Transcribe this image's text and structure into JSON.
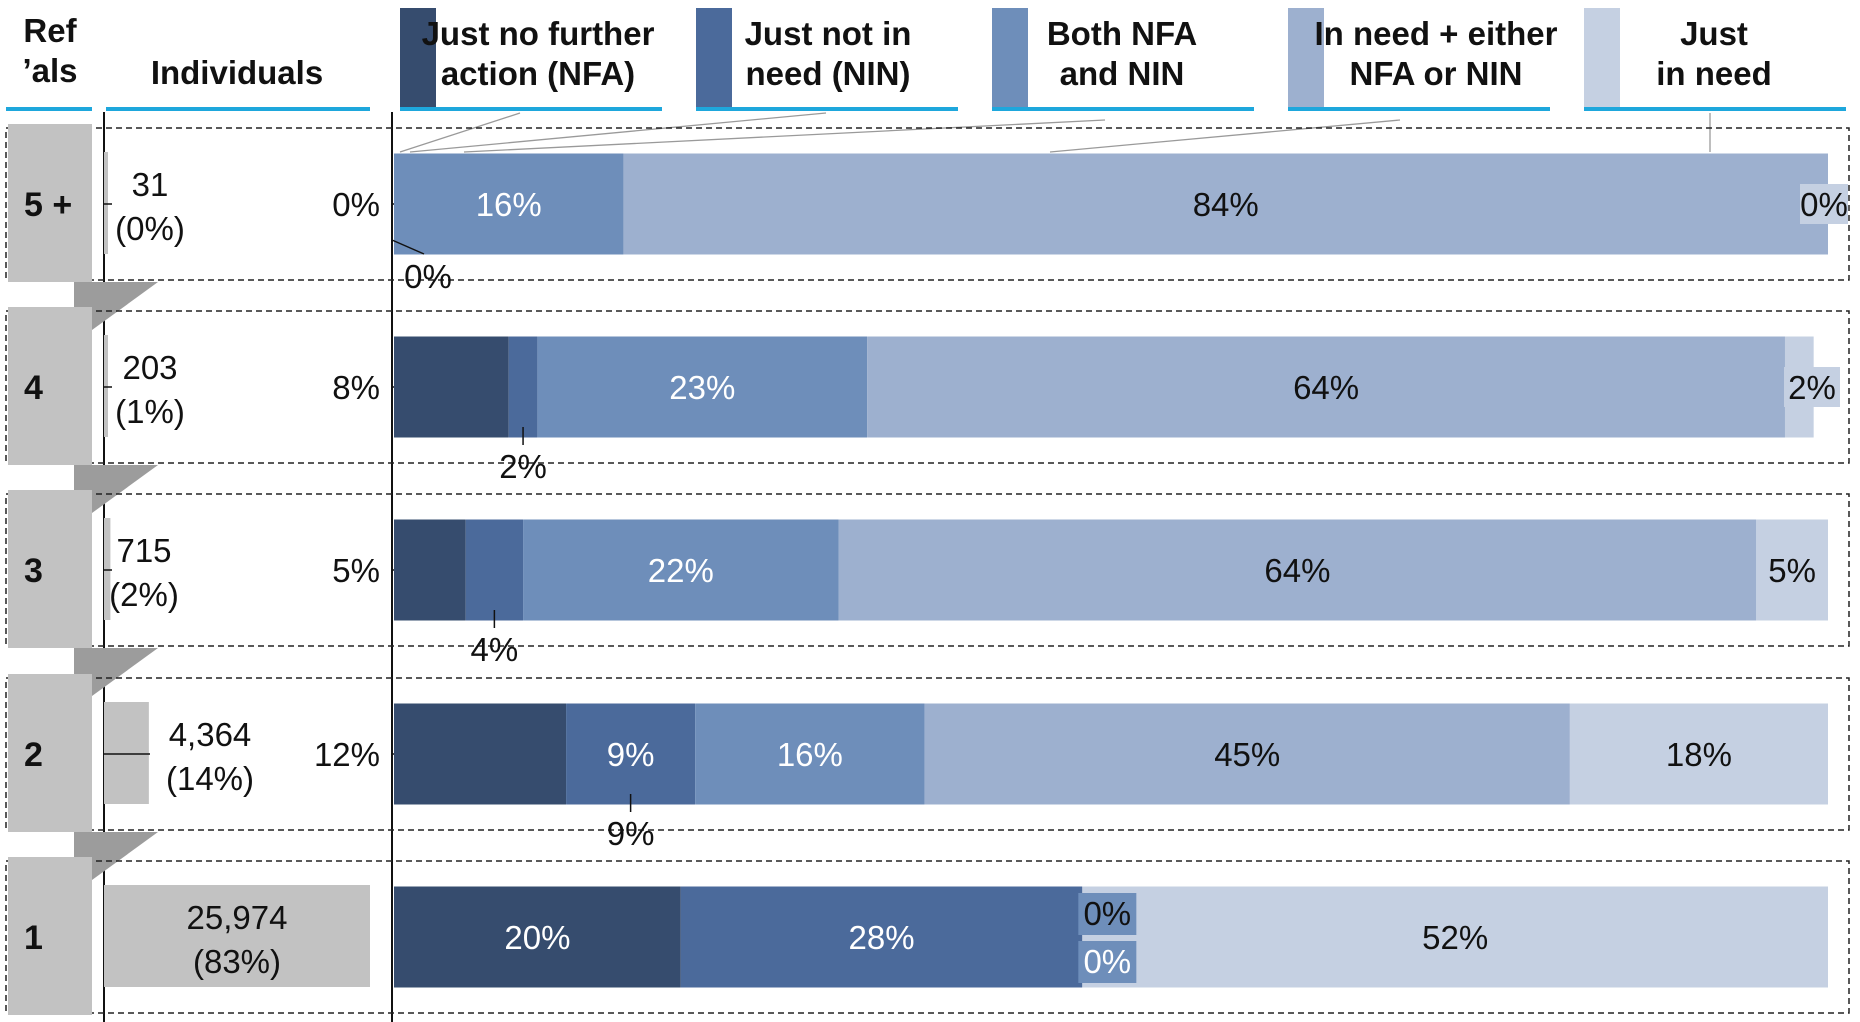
{
  "headers": {
    "referrals": [
      "Ref",
      "’als"
    ],
    "individuals": "Individuals"
  },
  "colors": {
    "just_nfa": "#364c6e",
    "just_nin": "#4b6a9b",
    "both": "#6e8eba",
    "in_need_either": "#9db0cf",
    "just_in_need": "#c5d0e2",
    "tab_gray": "#c2c2c2",
    "header_line": "#1ea7dc"
  },
  "chart_data": {
    "type": "bar",
    "orientation": "horizontal",
    "stacked": true,
    "normalized_percent": true,
    "legend_position": "top",
    "series": [
      {
        "name": [
          "Just no further",
          "action (NFA)"
        ],
        "color": "#364c6e",
        "values": [
          0,
          8,
          5,
          12,
          20
        ],
        "labels": [
          "0%",
          "8%",
          "5%",
          "12%",
          "20%"
        ]
      },
      {
        "name": [
          "Just not in",
          "need (NIN)"
        ],
        "color": "#4b6a9b",
        "values": [
          0,
          2,
          4,
          9,
          28
        ],
        "labels": [
          "0%",
          "2%",
          "4%",
          "9%",
          "28%"
        ]
      },
      {
        "name": [
          "Both NFA",
          "and NIN"
        ],
        "color": "#6e8eba",
        "values": [
          16,
          23,
          22,
          16,
          0
        ],
        "labels": [
          "16%",
          "23%",
          "22%",
          "16%",
          "0%"
        ]
      },
      {
        "name": [
          "In need + either",
          "NFA or NIN"
        ],
        "color": "#9db0cf",
        "values": [
          84,
          64,
          64,
          45,
          0
        ],
        "labels": [
          "84%",
          "64%",
          "64%",
          "45%",
          "0%"
        ]
      },
      {
        "name": [
          "Just",
          "in need"
        ],
        "color": "#c5d0e2",
        "values": [
          0,
          2,
          5,
          18,
          52
        ],
        "labels": [
          "0%",
          "2%",
          "5%",
          "18%",
          "52%"
        ]
      }
    ],
    "rows": [
      {
        "label": "5 +",
        "count": "31",
        "share": "(0%)",
        "share_value": 0
      },
      {
        "label": "4",
        "count": "203",
        "share": "(1%)",
        "share_value": 1
      },
      {
        "label": "3",
        "count": "715",
        "share": "(2%)",
        "share_value": 2
      },
      {
        "label": "2",
        "count": "4,364",
        "share": "(14%)",
        "share_value": 14
      },
      {
        "label": "1",
        "count": "25,974",
        "share": "(83%)",
        "share_value": 83
      }
    ]
  }
}
